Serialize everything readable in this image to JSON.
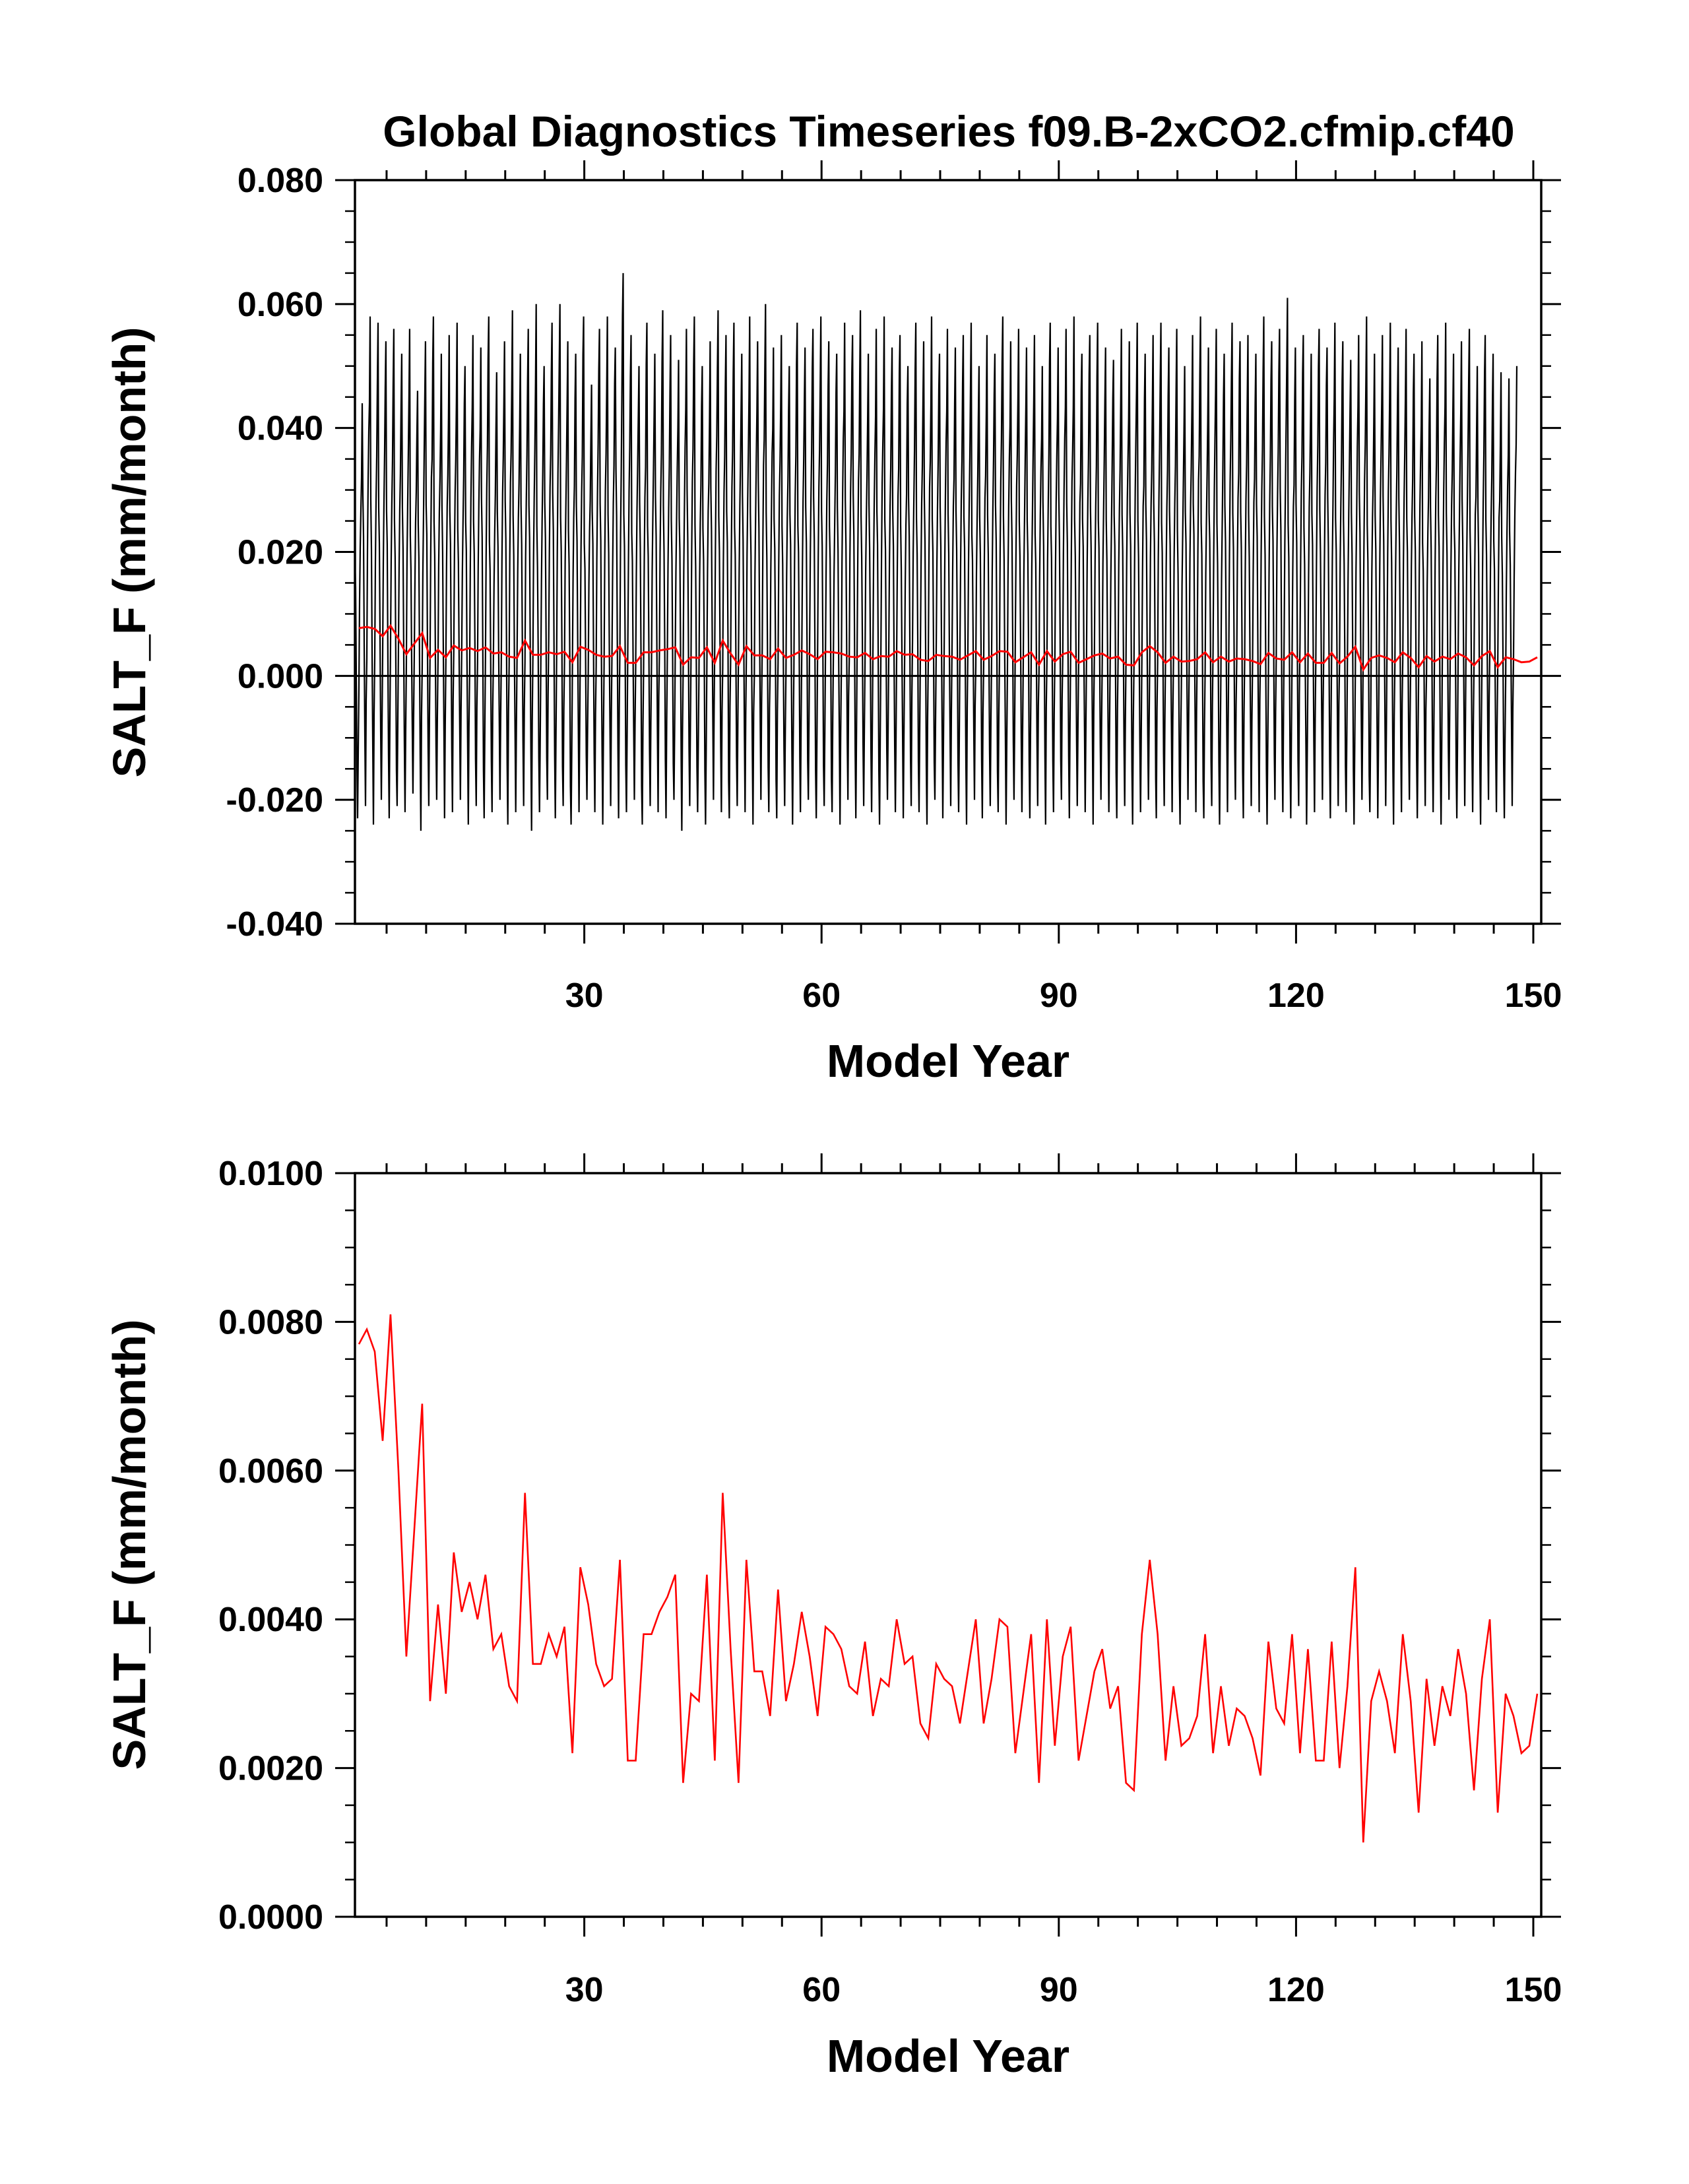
{
  "title": "Global Diagnostics Timeseries f09.B-2xCO2.cfmip.cf40",
  "colors": {
    "monthly": "#000000",
    "annual": "#ff0000",
    "axis": "#000000"
  },
  "chart_data": [
    {
      "type": "line",
      "title": "Global Diagnostics Timeseries f09.B-2xCO2.cfmip.cf40",
      "xlabel": "Model Year",
      "ylabel": "SALT_F (mm/month)",
      "xlim": [
        1,
        151
      ],
      "ylim": [
        -0.04,
        0.08
      ],
      "xticks": [
        30,
        60,
        90,
        120,
        150
      ],
      "xtick_labels": [
        "30",
        "60",
        "90",
        "120",
        "150"
      ],
      "yticks": [
        -0.04,
        -0.02,
        0.0,
        0.02,
        0.04,
        0.06,
        0.08
      ],
      "ytick_labels": [
        "-0.040",
        "-0.020",
        "0.000",
        "0.020",
        "0.040",
        "0.060",
        "0.080"
      ],
      "zero_line": true,
      "legend": "none",
      "series": [
        {
          "kind": "monthly",
          "color": "#000000",
          "per_year_monthly_min_max": [
            [
              -0.023,
              0.044
            ],
            [
              -0.021,
              0.058
            ],
            [
              -0.024,
              0.057
            ],
            [
              -0.02,
              0.054
            ],
            [
              -0.023,
              0.056
            ],
            [
              -0.021,
              0.052
            ],
            [
              -0.022,
              0.056
            ],
            [
              -0.019,
              0.046
            ],
            [
              -0.025,
              0.054
            ],
            [
              -0.021,
              0.058
            ],
            [
              -0.02,
              0.052
            ],
            [
              -0.023,
              0.055
            ],
            [
              -0.022,
              0.057
            ],
            [
              -0.02,
              0.05
            ],
            [
              -0.024,
              0.055
            ],
            [
              -0.021,
              0.053
            ],
            [
              -0.023,
              0.058
            ],
            [
              -0.022,
              0.049
            ],
            [
              -0.02,
              0.054
            ],
            [
              -0.024,
              0.059
            ],
            [
              -0.022,
              0.052
            ],
            [
              -0.021,
              0.056
            ],
            [
              -0.025,
              0.06
            ],
            [
              -0.022,
              0.05
            ],
            [
              -0.02,
              0.057
            ],
            [
              -0.023,
              0.06
            ],
            [
              -0.021,
              0.054
            ],
            [
              -0.024,
              0.052
            ],
            [
              -0.022,
              0.058
            ],
            [
              -0.02,
              0.047
            ],
            [
              -0.022,
              0.056
            ],
            [
              -0.024,
              0.058
            ],
            [
              -0.021,
              0.053
            ],
            [
              -0.023,
              0.065
            ],
            [
              -0.022,
              0.055
            ],
            [
              -0.02,
              0.05
            ],
            [
              -0.024,
              0.057
            ],
            [
              -0.021,
              0.052
            ],
            [
              -0.022,
              0.059
            ],
            [
              -0.023,
              0.055
            ],
            [
              -0.02,
              0.051
            ],
            [
              -0.025,
              0.056
            ],
            [
              -0.021,
              0.058
            ],
            [
              -0.022,
              0.05
            ],
            [
              -0.024,
              0.054
            ],
            [
              -0.02,
              0.059
            ],
            [
              -0.022,
              0.055
            ],
            [
              -0.023,
              0.057
            ],
            [
              -0.021,
              0.052
            ],
            [
              -0.022,
              0.058
            ],
            [
              -0.024,
              0.054
            ],
            [
              -0.02,
              0.06
            ],
            [
              -0.022,
              0.053
            ],
            [
              -0.023,
              0.055
            ],
            [
              -0.021,
              0.05
            ],
            [
              -0.024,
              0.057
            ],
            [
              -0.022,
              0.053
            ],
            [
              -0.02,
              0.056
            ],
            [
              -0.023,
              0.058
            ],
            [
              -0.021,
              0.054
            ],
            [
              -0.022,
              0.052
            ],
            [
              -0.024,
              0.057
            ],
            [
              -0.02,
              0.055
            ],
            [
              -0.023,
              0.059
            ],
            [
              -0.021,
              0.052
            ],
            [
              -0.022,
              0.056
            ],
            [
              -0.024,
              0.058
            ],
            [
              -0.02,
              0.053
            ],
            [
              -0.022,
              0.055
            ],
            [
              -0.023,
              0.05
            ],
            [
              -0.021,
              0.057
            ],
            [
              -0.022,
              0.054
            ],
            [
              -0.024,
              0.058
            ],
            [
              -0.02,
              0.052
            ],
            [
              -0.023,
              0.056
            ],
            [
              -0.021,
              0.053
            ],
            [
              -0.022,
              0.055
            ],
            [
              -0.024,
              0.057
            ],
            [
              -0.02,
              0.05
            ],
            [
              -0.023,
              0.055
            ],
            [
              -0.021,
              0.052
            ],
            [
              -0.022,
              0.058
            ],
            [
              -0.024,
              0.054
            ],
            [
              -0.02,
              0.056
            ],
            [
              -0.022,
              0.053
            ],
            [
              -0.023,
              0.055
            ],
            [
              -0.021,
              0.05
            ],
            [
              -0.024,
              0.057
            ],
            [
              -0.022,
              0.053
            ],
            [
              -0.02,
              0.056
            ],
            [
              -0.023,
              0.058
            ],
            [
              -0.021,
              0.052
            ],
            [
              -0.022,
              0.055
            ],
            [
              -0.024,
              0.057
            ],
            [
              -0.02,
              0.053
            ],
            [
              -0.022,
              0.051
            ],
            [
              -0.023,
              0.056
            ],
            [
              -0.021,
              0.054
            ],
            [
              -0.024,
              0.057
            ],
            [
              -0.022,
              0.052
            ],
            [
              -0.02,
              0.055
            ],
            [
              -0.023,
              0.057
            ],
            [
              -0.021,
              0.053
            ],
            [
              -0.022,
              0.056
            ],
            [
              -0.024,
              0.05
            ],
            [
              -0.02,
              0.055
            ],
            [
              -0.022,
              0.058
            ],
            [
              -0.023,
              0.053
            ],
            [
              -0.021,
              0.056
            ],
            [
              -0.024,
              0.052
            ],
            [
              -0.022,
              0.057
            ],
            [
              -0.02,
              0.054
            ],
            [
              -0.023,
              0.055
            ],
            [
              -0.021,
              0.052
            ],
            [
              -0.022,
              0.058
            ],
            [
              -0.024,
              0.054
            ],
            [
              -0.02,
              0.056
            ],
            [
              -0.022,
              0.061
            ],
            [
              -0.023,
              0.053
            ],
            [
              -0.021,
              0.055
            ],
            [
              -0.024,
              0.052
            ],
            [
              -0.022,
              0.056
            ],
            [
              -0.02,
              0.053
            ],
            [
              -0.023,
              0.057
            ],
            [
              -0.021,
              0.054
            ],
            [
              -0.022,
              0.051
            ],
            [
              -0.024,
              0.055
            ],
            [
              -0.02,
              0.058
            ],
            [
              -0.022,
              0.052
            ],
            [
              -0.023,
              0.055
            ],
            [
              -0.021,
              0.057
            ],
            [
              -0.024,
              0.053
            ],
            [
              -0.022,
              0.056
            ],
            [
              -0.02,
              0.052
            ],
            [
              -0.023,
              0.054
            ],
            [
              -0.021,
              0.048
            ],
            [
              -0.022,
              0.055
            ],
            [
              -0.024,
              0.057
            ],
            [
              -0.02,
              0.052
            ],
            [
              -0.023,
              0.054
            ],
            [
              -0.021,
              0.056
            ],
            [
              -0.022,
              0.05
            ],
            [
              -0.024,
              0.055
            ],
            [
              -0.02,
              0.052
            ],
            [
              -0.022,
              0.049
            ],
            [
              -0.023,
              0.048
            ],
            [
              -0.021,
              0.05
            ]
          ]
        },
        {
          "kind": "annual",
          "color": "#ff0000",
          "use_annual": true
        }
      ]
    },
    {
      "type": "line",
      "xlabel": "Model Year",
      "ylabel": "SALT_F (mm/month)",
      "xlim": [
        1,
        151
      ],
      "ylim": [
        0.0,
        0.01
      ],
      "xticks": [
        30,
        60,
        90,
        120,
        150
      ],
      "xtick_labels": [
        "30",
        "60",
        "90",
        "120",
        "150"
      ],
      "yticks": [
        0.0,
        0.002,
        0.004,
        0.006,
        0.008,
        0.01
      ],
      "ytick_labels": [
        "0.0000",
        "0.0020",
        "0.0040",
        "0.0060",
        "0.0080",
        "0.0100"
      ],
      "legend": "none",
      "series": [
        {
          "kind": "annual",
          "color": "#ff0000",
          "x_start": 1,
          "values": [
            0.0077,
            0.0079,
            0.0076,
            0.0064,
            0.0081,
            0.006,
            0.0035,
            0.0052,
            0.0069,
            0.0029,
            0.0042,
            0.003,
            0.0049,
            0.0041,
            0.0045,
            0.004,
            0.0046,
            0.0036,
            0.0038,
            0.0031,
            0.0029,
            0.0057,
            0.0034,
            0.0034,
            0.0038,
            0.0035,
            0.0039,
            0.0022,
            0.0047,
            0.0042,
            0.0034,
            0.0031,
            0.0032,
            0.0048,
            0.0021,
            0.0021,
            0.0038,
            0.0038,
            0.0041,
            0.0043,
            0.0046,
            0.0018,
            0.003,
            0.0029,
            0.0046,
            0.0021,
            0.0057,
            0.0036,
            0.0018,
            0.0048,
            0.0033,
            0.0033,
            0.0027,
            0.0044,
            0.0029,
            0.0034,
            0.0041,
            0.0035,
            0.0027,
            0.0039,
            0.0038,
            0.0036,
            0.0031,
            0.003,
            0.0037,
            0.0027,
            0.0032,
            0.0031,
            0.004,
            0.0034,
            0.0035,
            0.0026,
            0.0024,
            0.0034,
            0.0032,
            0.0031,
            0.0026,
            0.0033,
            0.004,
            0.0026,
            0.0032,
            0.004,
            0.0039,
            0.0022,
            0.003,
            0.0038,
            0.0018,
            0.004,
            0.0023,
            0.0035,
            0.0039,
            0.0021,
            0.0027,
            0.0033,
            0.0036,
            0.0028,
            0.0031,
            0.0018,
            0.0017,
            0.0038,
            0.0048,
            0.0038,
            0.0021,
            0.0031,
            0.0023,
            0.0024,
            0.0027,
            0.0038,
            0.0022,
            0.0031,
            0.0023,
            0.0028,
            0.0027,
            0.0024,
            0.0019,
            0.0037,
            0.0028,
            0.0026,
            0.0038,
            0.0022,
            0.0036,
            0.0021,
            0.0021,
            0.0037,
            0.002,
            0.0031,
            0.0047,
            0.001,
            0.0029,
            0.0033,
            0.0029,
            0.0022,
            0.0038,
            0.0029,
            0.0014,
            0.0032,
            0.0023,
            0.0031,
            0.0027,
            0.0036,
            0.003,
            0.0017,
            0.0032,
            0.004,
            0.0014,
            0.003,
            0.0027,
            0.0022,
            0.0023,
            0.003
          ]
        }
      ]
    }
  ]
}
